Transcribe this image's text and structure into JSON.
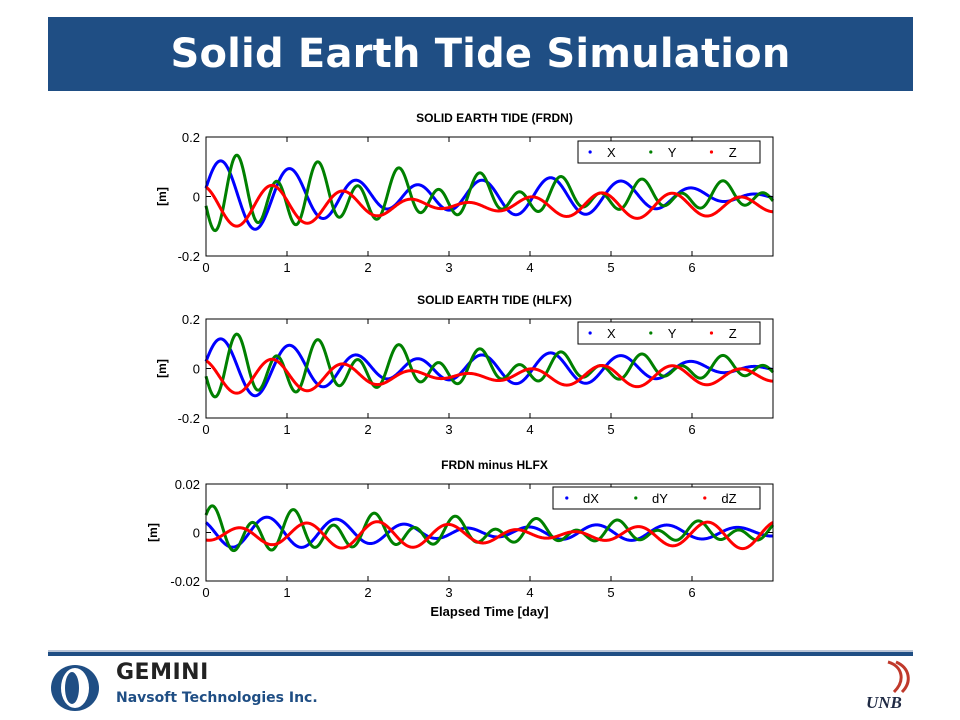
{
  "slide": {
    "title": "Solid Earth Tide Simulation"
  },
  "footer": {
    "brand_name": "GEMINI",
    "brand_sub": "Navsoft Technologies Inc.",
    "unb_label": "UNB"
  },
  "colors": {
    "title_bar": "#1f4e84",
    "series_x": "#0000ff",
    "series_y": "#008000",
    "series_z": "#ff0000"
  },
  "chart_data": [
    {
      "type": "line",
      "title": "SOLID EARTH TIDE (FRDN)",
      "xlabel": "",
      "ylabel": "[m]",
      "xlim": [
        0,
        7
      ],
      "ylim": [
        -0.2,
        0.2
      ],
      "xticks": [
        0,
        1,
        2,
        3,
        4,
        5,
        6
      ],
      "yticks": [
        -0.2,
        0,
        0.2
      ],
      "ytick_labels": [
        "-0.2",
        "0",
        "0.2"
      ],
      "grid": false,
      "legend": "top-right",
      "series": [
        {
          "name": "X",
          "color": "#0000ff",
          "amplitude": 0.09,
          "offset": 0.0,
          "envelope": [
            1.0,
            0.5
          ]
        },
        {
          "name": "Y",
          "color": "#008000",
          "amplitude": 0.12,
          "offset": 0.0,
          "envelope": [
            1.0,
            0.45
          ]
        },
        {
          "name": "Z",
          "color": "#ff0000",
          "amplitude": 0.06,
          "offset": -0.03,
          "envelope": [
            1.3,
            0.55
          ]
        }
      ]
    },
    {
      "type": "line",
      "title": "SOLID EARTH TIDE (HLFX)",
      "xlabel": "",
      "ylabel": "[m]",
      "xlim": [
        0,
        7
      ],
      "ylim": [
        -0.2,
        0.2
      ],
      "xticks": [
        0,
        1,
        2,
        3,
        4,
        5,
        6
      ],
      "yticks": [
        -0.2,
        0,
        0.2
      ],
      "ytick_labels": [
        "-0.2",
        "0",
        "0.2"
      ],
      "grid": false,
      "legend": "top-right",
      "series": [
        {
          "name": "X",
          "color": "#0000ff",
          "amplitude": 0.09,
          "offset": 0.0,
          "envelope": [
            1.0,
            0.5
          ]
        },
        {
          "name": "Y",
          "color": "#008000",
          "amplitude": 0.12,
          "offset": 0.0,
          "envelope": [
            1.0,
            0.45
          ]
        },
        {
          "name": "Z",
          "color": "#ff0000",
          "amplitude": 0.06,
          "offset": -0.03,
          "envelope": [
            1.3,
            0.55
          ]
        }
      ]
    },
    {
      "type": "line",
      "title": "FRDN minus HLFX",
      "xlabel": "Elapsed Time [day]",
      "ylabel": "[m]",
      "xlim": [
        0,
        7
      ],
      "ylim": [
        -0.02,
        0.02
      ],
      "xticks": [
        0,
        1,
        2,
        3,
        4,
        5,
        6
      ],
      "yticks": [
        -0.02,
        0,
        0.02
      ],
      "ytick_labels": [
        "-0.02",
        "0",
        "0.02"
      ],
      "grid": false,
      "legend": "top-right",
      "series": [
        {
          "name": "dX",
          "color": "#0000ff",
          "amplitude": 0.005,
          "offset": 0.0,
          "envelope": [
            1.0,
            0.6
          ]
        },
        {
          "name": "dY",
          "color": "#008000",
          "amplitude": 0.009,
          "offset": 0.0,
          "envelope": [
            1.0,
            0.55
          ]
        },
        {
          "name": "dZ",
          "color": "#ff0000",
          "amplitude": 0.007,
          "offset": -0.001,
          "envelope": [
            1.0,
            0.7
          ]
        }
      ]
    }
  ]
}
